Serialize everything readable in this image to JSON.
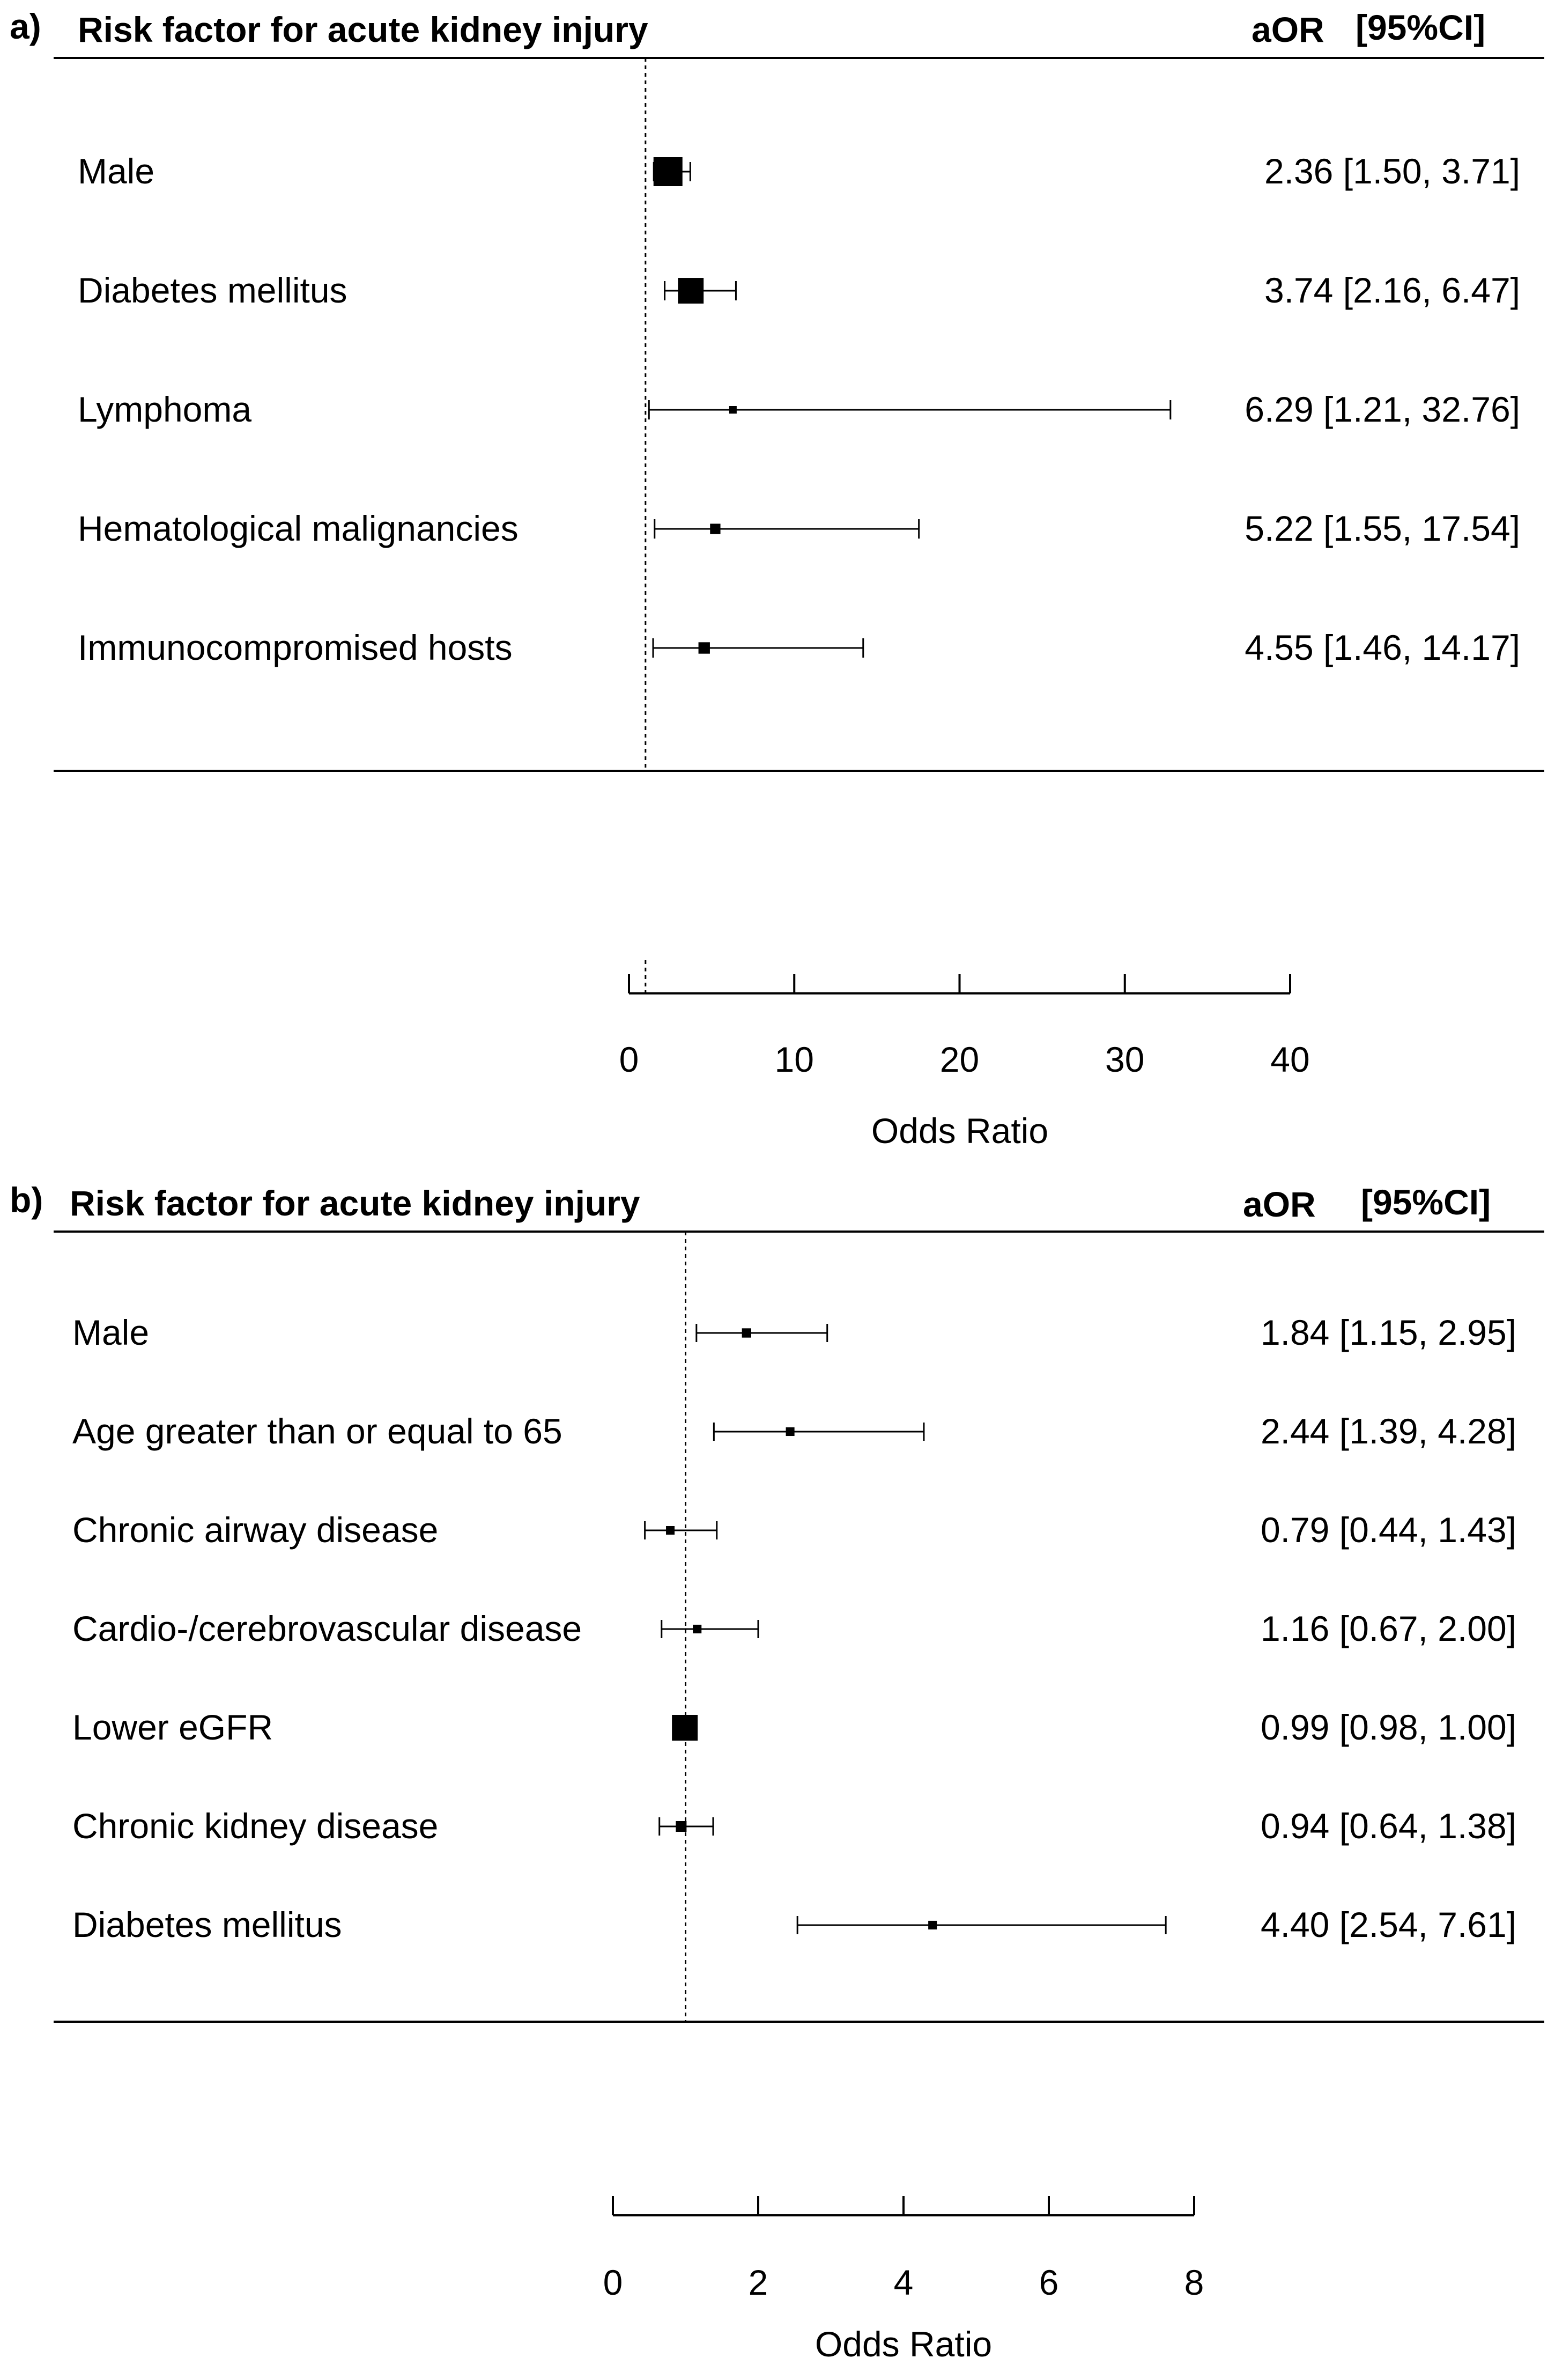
{
  "chart_data": [
    {
      "type": "forest",
      "panel_label": "a)",
      "header_left": "Risk factor for acute kidney injury",
      "header_aor": "aOR",
      "header_ci": "[95%CI]",
      "xlabel": "Odds Ratio",
      "xlim": [
        0,
        40
      ],
      "xticks": [
        0,
        10,
        20,
        30,
        40
      ],
      "reference_line": 1,
      "rows": [
        {
          "label": "Male",
          "or": 2.36,
          "lo": 1.5,
          "hi": 3.71,
          "text": "2.36 [1.50,  3.71]"
        },
        {
          "label": "Diabetes mellitus",
          "or": 3.74,
          "lo": 2.16,
          "hi": 6.47,
          "text": "3.74 [2.16,  6.47]"
        },
        {
          "label": "Lymphoma",
          "or": 6.29,
          "lo": 1.21,
          "hi": 32.76,
          "text": "6.29 [1.21, 32.76]"
        },
        {
          "label": "Hematological malignancies",
          "or": 5.22,
          "lo": 1.55,
          "hi": 17.54,
          "text": "5.22 [1.55, 17.54]"
        },
        {
          "label": "Immunocompromised hosts",
          "or": 4.55,
          "lo": 1.46,
          "hi": 14.17,
          "text": "4.55 [1.46, 14.17]"
        }
      ]
    },
    {
      "type": "forest",
      "panel_label": "b)",
      "header_left": "Risk factor for acute kidney injury",
      "header_aor": "aOR",
      "header_ci": "[95%CI]",
      "xlabel": "Odds Ratio",
      "xlim": [
        0,
        8
      ],
      "xticks": [
        0,
        2,
        4,
        6,
        8
      ],
      "reference_line": 1,
      "rows": [
        {
          "label": "Male",
          "or": 1.84,
          "lo": 1.15,
          "hi": 2.95,
          "text": "1.84 [1.15, 2.95]"
        },
        {
          "label": "Age greater than or equal to 65",
          "or": 2.44,
          "lo": 1.39,
          "hi": 4.28,
          "text": "2.44 [1.39, 4.28]"
        },
        {
          "label": "Chronic airway disease",
          "or": 0.79,
          "lo": 0.44,
          "hi": 1.43,
          "text": "0.79 [0.44, 1.43]"
        },
        {
          "label": "Cardio-/cerebrovascular disease",
          "or": 1.16,
          "lo": 0.67,
          "hi": 2.0,
          "text": "1.16 [0.67, 2.00]"
        },
        {
          "label": "Lower eGFR",
          "or": 0.99,
          "lo": 0.98,
          "hi": 1.0,
          "text": "0.99 [0.98, 1.00]"
        },
        {
          "label": "Chronic kidney disease",
          "or": 0.94,
          "lo": 0.64,
          "hi": 1.38,
          "text": "0.94 [0.64, 1.38]"
        },
        {
          "label": "Diabetes mellitus",
          "or": 4.4,
          "lo": 2.54,
          "hi": 7.61,
          "text": "4.40 [2.54, 7.61]"
        }
      ]
    }
  ]
}
